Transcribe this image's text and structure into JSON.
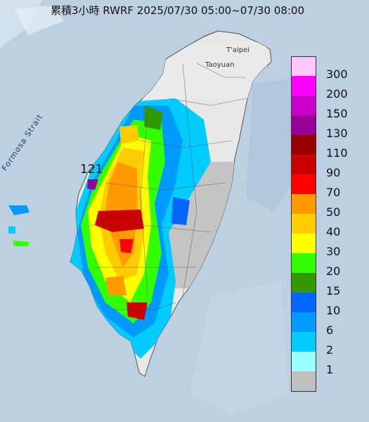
{
  "title": "累積3小時 RWRF 2025/07/30 05:00~07/30 08:00",
  "map_labels": {
    "strait": "Formosa Strait",
    "taipei": "T'aipei",
    "taoyuan": "Taoyuan",
    "max_value": "121"
  },
  "legend": [
    {
      "label": "300",
      "color": "#fdc8fd"
    },
    {
      "label": "200",
      "color": "#fe00fe"
    },
    {
      "label": "150",
      "color": "#cc00cc"
    },
    {
      "label": "130",
      "color": "#990099"
    },
    {
      "label": "110",
      "color": "#990000"
    },
    {
      "label": "90",
      "color": "#cc0000"
    },
    {
      "label": "70",
      "color": "#fe0000"
    },
    {
      "label": "50",
      "color": "#fe9900"
    },
    {
      "label": "40",
      "color": "#fecc00"
    },
    {
      "label": "30",
      "color": "#fefe00"
    },
    {
      "label": "20",
      "color": "#33ff00"
    },
    {
      "label": "15",
      "color": "#339900"
    },
    {
      "label": "10",
      "color": "#0066ff"
    },
    {
      "label": "6",
      "color": "#0099ff"
    },
    {
      "label": "2",
      "color": "#00ccff"
    },
    {
      "label": "1",
      "color": "#99ffff"
    },
    {
      "label": "",
      "color": "#c0c0c0"
    }
  ]
}
